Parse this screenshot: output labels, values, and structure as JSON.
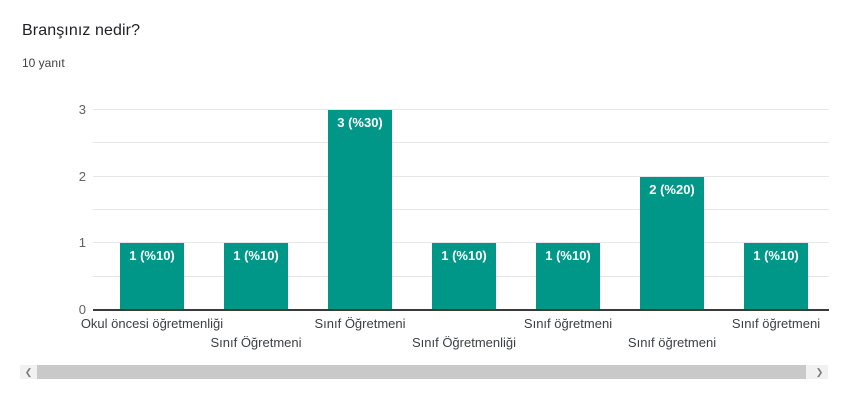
{
  "header": {
    "title": "Branşınız nedir?",
    "subtitle": "10 yanıt"
  },
  "chart_data": {
    "type": "bar",
    "title": "Branşınız nedir?",
    "subtitle": "10 yanıt",
    "categories": [
      "Okul öncesi öğretmenliği",
      "Sınıf Öğretmeni",
      "Sınıf Öğretmeni",
      "Sınıf Öğretmenliği",
      "Sınıf öğretmeni",
      "Sınıf öğretmeni",
      "Sınıf öğretmeni"
    ],
    "values": [
      1,
      1,
      3,
      1,
      1,
      2,
      1
    ],
    "bar_labels": [
      "1 (%10)",
      "1 (%10)",
      "3 (%30)",
      "1 (%10)",
      "1 (%10)",
      "2 (%20)",
      "1 (%10)"
    ],
    "xlabel": "",
    "ylabel": "",
    "ylim": [
      0,
      3
    ],
    "yticks": [
      0,
      1,
      2,
      3
    ],
    "grid": true,
    "minor_grid_step": 0.5,
    "legend_position": "none",
    "bar_color": "#009688",
    "bar_label_color": "#ffffff"
  },
  "scrollbar": {
    "left_arrow_icon": "❮",
    "right_arrow_icon": "❯"
  }
}
